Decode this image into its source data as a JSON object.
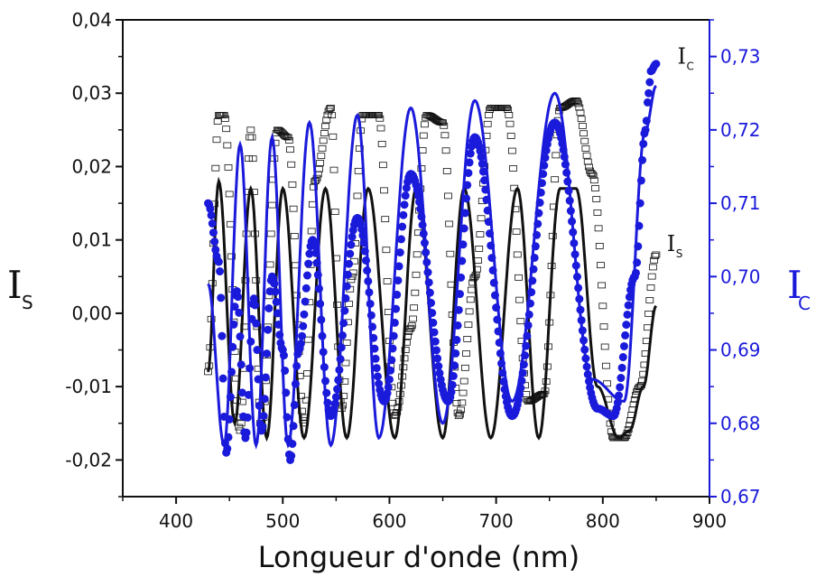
{
  "chart_data": {
    "type": "line",
    "xlabel": "Longueur d'onde (nm)",
    "xlim": [
      350,
      900
    ],
    "xticks": [
      400,
      500,
      600,
      700,
      800,
      900
    ],
    "y_left": {
      "label_main": "I",
      "label_sub": "S",
      "lim": [
        -0.025,
        0.04
      ],
      "ticks": [
        -0.02,
        -0.01,
        0.0,
        0.01,
        0.02,
        0.03,
        0.04
      ],
      "tick_labels": [
        "-0,02",
        "-0,01",
        "0,00",
        "0,01",
        "0,02",
        "0,03",
        "0,04"
      ],
      "color": "#111111"
    },
    "y_right": {
      "label_main": "I",
      "label_sub": "C",
      "lim": [
        0.67,
        0.735
      ],
      "ticks": [
        0.67,
        0.68,
        0.69,
        0.7,
        0.71,
        0.72,
        0.73
      ],
      "tick_labels": [
        "0,67",
        "0,68",
        "0,69",
        "0,70",
        "0,71",
        "0,72",
        "0,73"
      ],
      "color": "#1a1adb"
    },
    "annotations": [
      {
        "main": "I",
        "sub": "C",
        "x": 870,
        "y": 0.729,
        "axis": "right"
      },
      {
        "main": "I",
        "sub": "S",
        "x": 860,
        "y": 0.0085,
        "axis": "left"
      }
    ],
    "series": [
      {
        "axis": "left",
        "style": "open-squares",
        "color": "#111111",
        "x": [
          430,
          440,
          445,
          460,
          470,
          480,
          495,
          505,
          520,
          530,
          545,
          555,
          565,
          575,
          590,
          605,
          620,
          635,
          650,
          665,
          680,
          695,
          710,
          730,
          745,
          760,
          775,
          790,
          810,
          820,
          835,
          850
        ],
        "y": [
          -0.008,
          0.027,
          0.027,
          -0.016,
          0.025,
          -0.016,
          0.025,
          0.024,
          -0.015,
          0.018,
          0.028,
          -0.013,
          0.005,
          0.027,
          0.027,
          -0.014,
          -0.002,
          0.027,
          0.026,
          -0.014,
          0.005,
          0.028,
          0.028,
          -0.012,
          -0.011,
          0.028,
          0.029,
          0.019,
          -0.017,
          -0.017,
          -0.01,
          0.008
        ]
      },
      {
        "axis": "left",
        "style": "solid-line",
        "color": "#111111",
        "x": [
          430,
          440,
          455,
          470,
          485,
          500,
          520,
          540,
          560,
          580,
          605,
          625,
          650,
          670,
          695,
          720,
          740,
          760,
          775,
          795,
          815,
          825,
          838,
          850
        ],
        "y": [
          -0.008,
          0.018,
          -0.015,
          0.017,
          -0.017,
          0.017,
          -0.017,
          0.017,
          -0.017,
          0.017,
          -0.017,
          0.017,
          -0.017,
          0.017,
          -0.017,
          0.017,
          -0.017,
          0.017,
          0.017,
          -0.01,
          -0.017,
          -0.016,
          -0.01,
          0.001
        ]
      },
      {
        "axis": "right",
        "style": "blue-line",
        "color": "#1a1adb",
        "x": [
          430,
          445,
          460,
          475,
          490,
          505,
          525,
          545,
          570,
          590,
          620,
          650,
          680,
          715,
          755,
          790,
          820,
          840,
          850
        ],
        "y": [
          0.699,
          0.677,
          0.718,
          0.677,
          0.719,
          0.677,
          0.721,
          0.677,
          0.722,
          0.678,
          0.723,
          0.68,
          0.724,
          0.683,
          0.725,
          0.686,
          0.683,
          0.72,
          0.726
        ]
      },
      {
        "axis": "right",
        "style": "blue-dots",
        "color": "#1a1adb",
        "x": [
          430,
          440,
          447,
          457,
          465,
          473,
          480,
          490,
          500,
          507,
          515,
          528,
          545,
          570,
          595,
          620,
          655,
          680,
          715,
          755,
          795,
          810,
          830,
          840,
          843,
          845,
          850
        ],
        "y": [
          0.71,
          0.702,
          0.676,
          0.698,
          0.678,
          0.697,
          0.679,
          0.7,
          0.69,
          0.675,
          0.69,
          0.705,
          0.681,
          0.708,
          0.683,
          0.714,
          0.683,
          0.719,
          0.681,
          0.721,
          0.682,
          0.681,
          0.7,
          0.72,
          0.725,
          0.728,
          0.729
        ]
      }
    ]
  }
}
